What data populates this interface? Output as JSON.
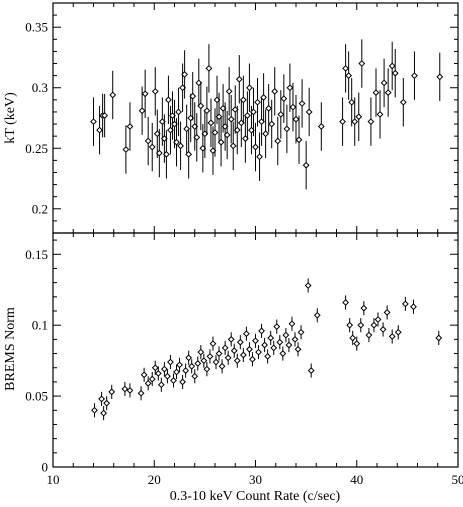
{
  "chart_data": [
    {
      "type": "scatter",
      "xlabel": "",
      "ylabel": "kT (keV)",
      "xlim": [
        10,
        50
      ],
      "ylim": [
        0.18,
        0.37
      ],
      "yticks": [
        0.2,
        0.25,
        0.3,
        0.35
      ],
      "ytick_labels": [
        "0.2",
        "0.25",
        "0.3",
        "0.35"
      ],
      "marker": "open-diamond-with-vertical-errorbars",
      "points": [
        {
          "x": 14.0,
          "y": 0.272,
          "err": 0.02
        },
        {
          "x": 14.6,
          "y": 0.265,
          "err": 0.02
        },
        {
          "x": 14.9,
          "y": 0.277,
          "err": 0.018
        },
        {
          "x": 15.1,
          "y": 0.277,
          "err": 0.018
        },
        {
          "x": 15.9,
          "y": 0.294,
          "err": 0.02
        },
        {
          "x": 17.2,
          "y": 0.249,
          "err": 0.02
        },
        {
          "x": 17.6,
          "y": 0.268,
          "err": 0.02
        },
        {
          "x": 18.8,
          "y": 0.281,
          "err": 0.02
        },
        {
          "x": 19.1,
          "y": 0.295,
          "err": 0.02
        },
        {
          "x": 19.4,
          "y": 0.256,
          "err": 0.02
        },
        {
          "x": 19.8,
          "y": 0.251,
          "err": 0.02
        },
        {
          "x": 20.1,
          "y": 0.297,
          "err": 0.02
        },
        {
          "x": 20.3,
          "y": 0.262,
          "err": 0.02
        },
        {
          "x": 20.5,
          "y": 0.246,
          "err": 0.02
        },
        {
          "x": 20.8,
          "y": 0.272,
          "err": 0.02
        },
        {
          "x": 21.0,
          "y": 0.258,
          "err": 0.02
        },
        {
          "x": 21.2,
          "y": 0.245,
          "err": 0.02
        },
        {
          "x": 21.4,
          "y": 0.29,
          "err": 0.02
        },
        {
          "x": 21.6,
          "y": 0.265,
          "err": 0.02
        },
        {
          "x": 21.8,
          "y": 0.277,
          "err": 0.02
        },
        {
          "x": 22.0,
          "y": 0.27,
          "err": 0.02
        },
        {
          "x": 22.2,
          "y": 0.255,
          "err": 0.02
        },
        {
          "x": 22.4,
          "y": 0.28,
          "err": 0.02
        },
        {
          "x": 22.6,
          "y": 0.252,
          "err": 0.02
        },
        {
          "x": 22.8,
          "y": 0.3,
          "err": 0.02
        },
        {
          "x": 23.0,
          "y": 0.311,
          "err": 0.02
        },
        {
          "x": 23.2,
          "y": 0.266,
          "err": 0.02
        },
        {
          "x": 23.4,
          "y": 0.245,
          "err": 0.02
        },
        {
          "x": 23.6,
          "y": 0.275,
          "err": 0.02
        },
        {
          "x": 23.8,
          "y": 0.293,
          "err": 0.02
        },
        {
          "x": 24.0,
          "y": 0.268,
          "err": 0.02
        },
        {
          "x": 24.2,
          "y": 0.259,
          "err": 0.02
        },
        {
          "x": 24.4,
          "y": 0.304,
          "err": 0.02
        },
        {
          "x": 24.6,
          "y": 0.285,
          "err": 0.02
        },
        {
          "x": 24.8,
          "y": 0.25,
          "err": 0.02
        },
        {
          "x": 25.0,
          "y": 0.262,
          "err": 0.02
        },
        {
          "x": 25.2,
          "y": 0.281,
          "err": 0.02
        },
        {
          "x": 25.4,
          "y": 0.316,
          "err": 0.02
        },
        {
          "x": 25.6,
          "y": 0.271,
          "err": 0.02
        },
        {
          "x": 25.8,
          "y": 0.248,
          "err": 0.02
        },
        {
          "x": 26.0,
          "y": 0.263,
          "err": 0.02
        },
        {
          "x": 26.2,
          "y": 0.29,
          "err": 0.02
        },
        {
          "x": 26.4,
          "y": 0.276,
          "err": 0.02
        },
        {
          "x": 26.6,
          "y": 0.255,
          "err": 0.02
        },
        {
          "x": 26.8,
          "y": 0.283,
          "err": 0.02
        },
        {
          "x": 27.0,
          "y": 0.268,
          "err": 0.02
        },
        {
          "x": 27.2,
          "y": 0.261,
          "err": 0.02
        },
        {
          "x": 27.4,
          "y": 0.297,
          "err": 0.02
        },
        {
          "x": 27.6,
          "y": 0.274,
          "err": 0.02
        },
        {
          "x": 27.8,
          "y": 0.252,
          "err": 0.02
        },
        {
          "x": 28.0,
          "y": 0.282,
          "err": 0.02
        },
        {
          "x": 28.2,
          "y": 0.265,
          "err": 0.02
        },
        {
          "x": 28.4,
          "y": 0.307,
          "err": 0.02
        },
        {
          "x": 28.6,
          "y": 0.271,
          "err": 0.02
        },
        {
          "x": 28.8,
          "y": 0.29,
          "err": 0.02
        },
        {
          "x": 29.0,
          "y": 0.258,
          "err": 0.02
        },
        {
          "x": 29.2,
          "y": 0.277,
          "err": 0.02
        },
        {
          "x": 29.4,
          "y": 0.3,
          "err": 0.02
        },
        {
          "x": 29.6,
          "y": 0.265,
          "err": 0.02
        },
        {
          "x": 29.8,
          "y": 0.28,
          "err": 0.02
        },
        {
          "x": 30.0,
          "y": 0.251,
          "err": 0.02
        },
        {
          "x": 30.2,
          "y": 0.288,
          "err": 0.02
        },
        {
          "x": 30.4,
          "y": 0.243,
          "err": 0.02
        },
        {
          "x": 30.6,
          "y": 0.272,
          "err": 0.02
        },
        {
          "x": 30.8,
          "y": 0.292,
          "err": 0.02
        },
        {
          "x": 31.0,
          "y": 0.262,
          "err": 0.02
        },
        {
          "x": 31.3,
          "y": 0.283,
          "err": 0.02
        },
        {
          "x": 31.6,
          "y": 0.27,
          "err": 0.02
        },
        {
          "x": 31.9,
          "y": 0.297,
          "err": 0.02
        },
        {
          "x": 32.2,
          "y": 0.256,
          "err": 0.02
        },
        {
          "x": 32.5,
          "y": 0.278,
          "err": 0.02
        },
        {
          "x": 32.8,
          "y": 0.291,
          "err": 0.02
        },
        {
          "x": 33.1,
          "y": 0.266,
          "err": 0.02
        },
        {
          "x": 33.4,
          "y": 0.3,
          "err": 0.02
        },
        {
          "x": 33.7,
          "y": 0.284,
          "err": 0.02
        },
        {
          "x": 34.0,
          "y": 0.274,
          "err": 0.02
        },
        {
          "x": 34.3,
          "y": 0.257,
          "err": 0.02
        },
        {
          "x": 34.6,
          "y": 0.287,
          "err": 0.02
        },
        {
          "x": 35.0,
          "y": 0.236,
          "err": 0.02
        },
        {
          "x": 35.3,
          "y": 0.28,
          "err": 0.02
        },
        {
          "x": 36.5,
          "y": 0.268,
          "err": 0.02
        },
        {
          "x": 38.6,
          "y": 0.272,
          "err": 0.02
        },
        {
          "x": 38.9,
          "y": 0.316,
          "err": 0.02
        },
        {
          "x": 39.2,
          "y": 0.31,
          "err": 0.02
        },
        {
          "x": 39.5,
          "y": 0.288,
          "err": 0.02
        },
        {
          "x": 39.8,
          "y": 0.272,
          "err": 0.02
        },
        {
          "x": 40.2,
          "y": 0.276,
          "err": 0.02
        },
        {
          "x": 40.5,
          "y": 0.32,
          "err": 0.02
        },
        {
          "x": 41.4,
          "y": 0.272,
          "err": 0.02
        },
        {
          "x": 41.9,
          "y": 0.296,
          "err": 0.02
        },
        {
          "x": 42.3,
          "y": 0.278,
          "err": 0.02
        },
        {
          "x": 42.7,
          "y": 0.304,
          "err": 0.02
        },
        {
          "x": 43.1,
          "y": 0.296,
          "err": 0.02
        },
        {
          "x": 43.5,
          "y": 0.318,
          "err": 0.02
        },
        {
          "x": 43.8,
          "y": 0.312,
          "err": 0.02
        },
        {
          "x": 44.6,
          "y": 0.288,
          "err": 0.02
        },
        {
          "x": 45.7,
          "y": 0.31,
          "err": 0.02
        },
        {
          "x": 48.2,
          "y": 0.309,
          "err": 0.02
        }
      ]
    },
    {
      "type": "scatter",
      "xlabel": "0.3-10 keV Count Rate (c/sec)",
      "ylabel": "BREMS Norm",
      "xlim": [
        10,
        50
      ],
      "ylim": [
        0,
        0.165
      ],
      "xticks": [
        10,
        20,
        30,
        40,
        50
      ],
      "xtick_labels": [
        "10",
        "20",
        "30",
        "40",
        "50"
      ],
      "yticks": [
        0,
        0.05,
        0.1,
        0.15
      ],
      "ytick_labels": [
        "0",
        "0.05",
        "0.1",
        "0.15"
      ],
      "marker": "open-diamond-with-vertical-errorbars",
      "points": [
        {
          "x": 14.1,
          "y": 0.04,
          "err": 0.005
        },
        {
          "x": 14.8,
          "y": 0.048,
          "err": 0.005
        },
        {
          "x": 15.0,
          "y": 0.038,
          "err": 0.005
        },
        {
          "x": 15.3,
          "y": 0.045,
          "err": 0.005
        },
        {
          "x": 15.8,
          "y": 0.053,
          "err": 0.005
        },
        {
          "x": 17.1,
          "y": 0.055,
          "err": 0.005
        },
        {
          "x": 17.6,
          "y": 0.054,
          "err": 0.005
        },
        {
          "x": 18.7,
          "y": 0.052,
          "err": 0.005
        },
        {
          "x": 19.0,
          "y": 0.065,
          "err": 0.005
        },
        {
          "x": 19.4,
          "y": 0.059,
          "err": 0.005
        },
        {
          "x": 19.8,
          "y": 0.062,
          "err": 0.005
        },
        {
          "x": 20.1,
          "y": 0.07,
          "err": 0.005
        },
        {
          "x": 20.4,
          "y": 0.066,
          "err": 0.005
        },
        {
          "x": 20.7,
          "y": 0.058,
          "err": 0.005
        },
        {
          "x": 21.0,
          "y": 0.069,
          "err": 0.005
        },
        {
          "x": 21.3,
          "y": 0.064,
          "err": 0.005
        },
        {
          "x": 21.6,
          "y": 0.074,
          "err": 0.005
        },
        {
          "x": 21.9,
          "y": 0.061,
          "err": 0.005
        },
        {
          "x": 22.2,
          "y": 0.067,
          "err": 0.005
        },
        {
          "x": 22.5,
          "y": 0.072,
          "err": 0.005
        },
        {
          "x": 22.8,
          "y": 0.06,
          "err": 0.005
        },
        {
          "x": 23.1,
          "y": 0.068,
          "err": 0.005
        },
        {
          "x": 23.4,
          "y": 0.077,
          "err": 0.005
        },
        {
          "x": 23.7,
          "y": 0.071,
          "err": 0.005
        },
        {
          "x": 24.0,
          "y": 0.064,
          "err": 0.005
        },
        {
          "x": 24.3,
          "y": 0.073,
          "err": 0.005
        },
        {
          "x": 24.6,
          "y": 0.081,
          "err": 0.005
        },
        {
          "x": 24.9,
          "y": 0.075,
          "err": 0.005
        },
        {
          "x": 25.2,
          "y": 0.069,
          "err": 0.005
        },
        {
          "x": 25.5,
          "y": 0.078,
          "err": 0.005
        },
        {
          "x": 25.8,
          "y": 0.087,
          "err": 0.005
        },
        {
          "x": 26.1,
          "y": 0.074,
          "err": 0.005
        },
        {
          "x": 26.4,
          "y": 0.08,
          "err": 0.005
        },
        {
          "x": 26.7,
          "y": 0.071,
          "err": 0.005
        },
        {
          "x": 27.0,
          "y": 0.084,
          "err": 0.005
        },
        {
          "x": 27.3,
          "y": 0.077,
          "err": 0.005
        },
        {
          "x": 27.6,
          "y": 0.09,
          "err": 0.005
        },
        {
          "x": 27.9,
          "y": 0.082,
          "err": 0.005
        },
        {
          "x": 28.2,
          "y": 0.075,
          "err": 0.005
        },
        {
          "x": 28.5,
          "y": 0.088,
          "err": 0.005
        },
        {
          "x": 28.8,
          "y": 0.079,
          "err": 0.005
        },
        {
          "x": 29.1,
          "y": 0.094,
          "err": 0.005
        },
        {
          "x": 29.4,
          "y": 0.083,
          "err": 0.005
        },
        {
          "x": 29.7,
          "y": 0.076,
          "err": 0.005
        },
        {
          "x": 30.0,
          "y": 0.089,
          "err": 0.005
        },
        {
          "x": 30.3,
          "y": 0.081,
          "err": 0.005
        },
        {
          "x": 30.6,
          "y": 0.096,
          "err": 0.005
        },
        {
          "x": 30.9,
          "y": 0.086,
          "err": 0.005
        },
        {
          "x": 31.2,
          "y": 0.078,
          "err": 0.005
        },
        {
          "x": 31.5,
          "y": 0.091,
          "err": 0.005
        },
        {
          "x": 31.8,
          "y": 0.084,
          "err": 0.005
        },
        {
          "x": 32.1,
          "y": 0.099,
          "err": 0.005
        },
        {
          "x": 32.4,
          "y": 0.088,
          "err": 0.005
        },
        {
          "x": 32.7,
          "y": 0.08,
          "err": 0.005
        },
        {
          "x": 33.0,
          "y": 0.093,
          "err": 0.005
        },
        {
          "x": 33.3,
          "y": 0.086,
          "err": 0.005
        },
        {
          "x": 33.6,
          "y": 0.101,
          "err": 0.005
        },
        {
          "x": 33.9,
          "y": 0.09,
          "err": 0.005
        },
        {
          "x": 34.2,
          "y": 0.083,
          "err": 0.005
        },
        {
          "x": 34.5,
          "y": 0.095,
          "err": 0.005
        },
        {
          "x": 35.2,
          "y": 0.128,
          "err": 0.005
        },
        {
          "x": 35.5,
          "y": 0.068,
          "err": 0.005
        },
        {
          "x": 36.1,
          "y": 0.107,
          "err": 0.005
        },
        {
          "x": 38.9,
          "y": 0.116,
          "err": 0.005
        },
        {
          "x": 39.3,
          "y": 0.1,
          "err": 0.005
        },
        {
          "x": 39.6,
          "y": 0.091,
          "err": 0.005
        },
        {
          "x": 40.0,
          "y": 0.087,
          "err": 0.005
        },
        {
          "x": 40.4,
          "y": 0.1,
          "err": 0.005
        },
        {
          "x": 40.7,
          "y": 0.112,
          "err": 0.005
        },
        {
          "x": 41.2,
          "y": 0.093,
          "err": 0.005
        },
        {
          "x": 41.7,
          "y": 0.1,
          "err": 0.005
        },
        {
          "x": 42.1,
          "y": 0.104,
          "err": 0.005
        },
        {
          "x": 42.6,
          "y": 0.097,
          "err": 0.005
        },
        {
          "x": 43.0,
          "y": 0.109,
          "err": 0.005
        },
        {
          "x": 43.5,
          "y": 0.092,
          "err": 0.005
        },
        {
          "x": 44.1,
          "y": 0.095,
          "err": 0.005
        },
        {
          "x": 44.8,
          "y": 0.115,
          "err": 0.005
        },
        {
          "x": 45.6,
          "y": 0.113,
          "err": 0.005
        },
        {
          "x": 48.1,
          "y": 0.091,
          "err": 0.005
        }
      ]
    }
  ]
}
